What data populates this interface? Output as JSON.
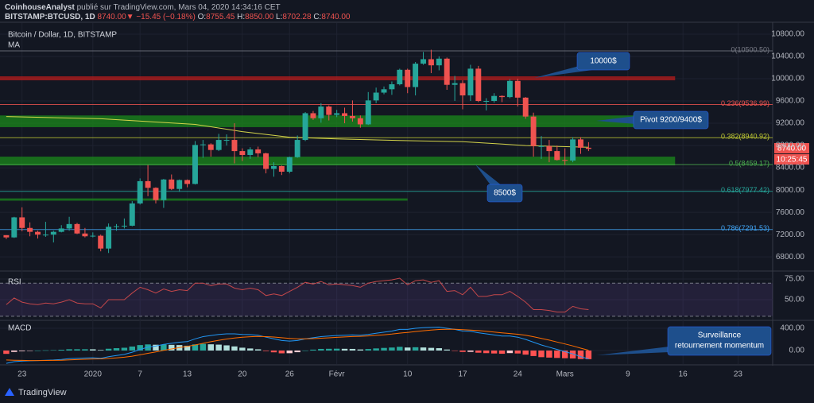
{
  "header": {
    "author": "CoinhouseAnalyst",
    "published": "publié sur TradingView.com, Mars 04, 2020 14:34:16 CET",
    "symbol": "BITSTAMP:BTCUSD, 1D",
    "last": "8740.00",
    "arrow": "▼",
    "change": "−15.45 (−0.18%)",
    "o_label": "O:",
    "o": "8755.45",
    "h_label": "H:",
    "h": "8850.00",
    "l_label": "L:",
    "l": "8702.28",
    "c_label": "C:",
    "c": "8740.00"
  },
  "footer": "TradingView",
  "chart_data": [
    {
      "type": "candlestick",
      "title": "Bitcoin / Dollar, 1D, BITSTAMP",
      "up_color": "#26a69a",
      "down_color": "#ef5350",
      "ohlc": [
        [
          7190,
          7190,
          7120,
          7150
        ],
        [
          7150,
          7520,
          7140,
          7510
        ],
        [
          7510,
          7690,
          7260,
          7320
        ],
        [
          7320,
          7420,
          7170,
          7250
        ],
        [
          7250,
          7270,
          7130,
          7200
        ],
        [
          7200,
          7430,
          7160,
          7200
        ],
        [
          7200,
          7270,
          7060,
          7250
        ],
        [
          7250,
          7370,
          7240,
          7310
        ],
        [
          7310,
          7520,
          7270,
          7390
        ],
        [
          7390,
          7410,
          7210,
          7220
        ],
        [
          7220,
          7320,
          7150,
          7170
        ],
        [
          7170,
          7240,
          7150,
          7180
        ],
        [
          7180,
          7200,
          6900,
          6950
        ],
        [
          6950,
          7400,
          6870,
          7340
        ],
        [
          7340,
          7390,
          7270,
          7350
        ],
        [
          7350,
          7490,
          7310,
          7360
        ],
        [
          7360,
          7800,
          7350,
          7760
        ],
        [
          7760,
          8210,
          7740,
          8160
        ],
        [
          8160,
          8450,
          7890,
          8040
        ],
        [
          8040,
          8050,
          7760,
          7820
        ],
        [
          7820,
          8200,
          7680,
          8190
        ],
        [
          8190,
          8280,
          8000,
          8020
        ],
        [
          8020,
          8190,
          7970,
          8180
        ],
        [
          8180,
          8190,
          8050,
          8110
        ],
        [
          8110,
          8880,
          8100,
          8810
        ],
        [
          8810,
          8900,
          8580,
          8820
        ],
        [
          8820,
          8840,
          8600,
          8720
        ],
        [
          8720,
          9010,
          8700,
          8900
        ],
        [
          8900,
          9000,
          8800,
          8900
        ],
        [
          8900,
          9200,
          8480,
          8700
        ],
        [
          8700,
          8750,
          8520,
          8630
        ],
        [
          8630,
          8770,
          8560,
          8730
        ],
        [
          8730,
          8780,
          8590,
          8660
        ],
        [
          8660,
          8670,
          8300,
          8380
        ],
        [
          8380,
          8500,
          8240,
          8430
        ],
        [
          8430,
          8440,
          8270,
          8330
        ],
        [
          8330,
          8600,
          8300,
          8590
        ],
        [
          8590,
          8980,
          8580,
          8900
        ],
        [
          8900,
          9400,
          8880,
          9380
        ],
        [
          9380,
          9420,
          9260,
          9290
        ],
        [
          9290,
          9560,
          9210,
          9500
        ],
        [
          9500,
          9520,
          9250,
          9350
        ],
        [
          9350,
          9440,
          9310,
          9380
        ],
        [
          9380,
          9480,
          9200,
          9330
        ],
        [
          9330,
          9610,
          9230,
          9290
        ],
        [
          9290,
          9340,
          9120,
          9180
        ],
        [
          9180,
          9760,
          9170,
          9610
        ],
        [
          9610,
          9840,
          9560,
          9750
        ],
        [
          9750,
          9860,
          9720,
          9810
        ],
        [
          9810,
          9950,
          9710,
          9900
        ],
        [
          9900,
          10180,
          9880,
          10160
        ],
        [
          10160,
          10180,
          9740,
          9850
        ],
        [
          9850,
          10300,
          9700,
          10270
        ],
        [
          10270,
          10480,
          10250,
          10350
        ],
        [
          10350,
          10520,
          10100,
          10240
        ],
        [
          10240,
          10400,
          10150,
          10360
        ],
        [
          10360,
          10380,
          9800,
          9890
        ],
        [
          9890,
          10050,
          9600,
          9920
        ],
        [
          9920,
          9970,
          9450,
          9700
        ],
        [
          9700,
          10250,
          9600,
          10180
        ],
        [
          10180,
          10230,
          9580,
          9600
        ],
        [
          9600,
          9650,
          9430,
          9600
        ],
        [
          9600,
          9740,
          9570,
          9690
        ],
        [
          9690,
          9700,
          9580,
          9670
        ],
        [
          9670,
          9990,
          9650,
          9960
        ],
        [
          9960,
          10000,
          9500,
          9660
        ],
        [
          9660,
          9670,
          9280,
          9320
        ],
        [
          9320,
          9390,
          8600,
          8790
        ],
        [
          8790,
          8970,
          8560,
          8790
        ],
        [
          8790,
          8900,
          8500,
          8700
        ],
        [
          8700,
          8800,
          8530,
          8540
        ],
        [
          8540,
          8750,
          8450,
          8530
        ],
        [
          8530,
          8950,
          8500,
          8910
        ],
        [
          8910,
          8950,
          8650,
          8760
        ],
        [
          8760,
          8860,
          8700,
          8740
        ]
      ],
      "series": [
        {
          "name": "MA",
          "color": "#d4d44a",
          "x": [
            0,
            12,
            24,
            30,
            36,
            42,
            50,
            58,
            66,
            74
          ],
          "values": [
            9320,
            9280,
            9180,
            9050,
            8950,
            8920,
            8890,
            8870,
            8800,
            8770
          ]
        }
      ],
      "xlim": [
        -0.8,
        97.4
      ],
      "xticks": [
        {
          "value": 2,
          "label": "23"
        },
        {
          "value": 11,
          "label": "2020"
        },
        {
          "value": 17,
          "label": "7"
        },
        {
          "value": 23,
          "label": "13"
        },
        {
          "value": 30,
          "label": "20"
        },
        {
          "value": 36,
          "label": "26"
        },
        {
          "value": 42,
          "label": "Févr"
        },
        {
          "value": 51,
          "label": "10"
        },
        {
          "value": 58,
          "label": "17"
        },
        {
          "value": 65,
          "label": "24"
        },
        {
          "value": 71,
          "label": "Mars"
        },
        {
          "value": 79,
          "label": "9"
        },
        {
          "value": 86,
          "label": "16"
        },
        {
          "value": 93,
          "label": "23"
        }
      ],
      "ylim": [
        6560,
        10985
      ],
      "yticks": [
        {
          "value": 6800,
          "label": "6800.00"
        },
        {
          "value": 7200,
          "label": "7200.00"
        },
        {
          "value": 7600,
          "label": "7600.00"
        },
        {
          "value": 8000,
          "label": "8000.00"
        },
        {
          "value": 8400,
          "label": "8400.00"
        },
        {
          "value": 8800,
          "label": "8800.00"
        },
        {
          "value": 9200,
          "label": "9200.00"
        },
        {
          "value": 9600,
          "label": "9600.00"
        },
        {
          "value": 10000,
          "label": "10000.00"
        },
        {
          "value": 10400,
          "label": "10400.00"
        },
        {
          "value": 10800,
          "label": "10800.00"
        }
      ],
      "levels": [
        {
          "value": 10500.5,
          "label": "0(10500.50)",
          "color": "#787b86"
        },
        {
          "value": 9536.99,
          "label": "0.236(9536.99)",
          "color": "#ef5350"
        },
        {
          "value": 8940.92,
          "label": "0.382(8940.92)",
          "color": "#c0ca33"
        },
        {
          "value": 8459.17,
          "label": "0.5(8459.17)",
          "color": "#4caf50"
        },
        {
          "value": 7977.42,
          "label": "0.618(7977.42)",
          "color": "#26a69a"
        },
        {
          "value": 7291.53,
          "label": "0.786(7291.53)",
          "color": "#42a5f5"
        }
      ],
      "zones": [
        {
          "from": 9971,
          "to": 10043,
          "end": 85,
          "color": "#b71c1c"
        },
        {
          "from": 9130,
          "to": 9340,
          "end": 85,
          "color": "#1b8a1b"
        },
        {
          "from": 8443,
          "to": 8600,
          "end": 85,
          "color": "#1b8a1b"
        },
        {
          "from": 7810,
          "to": 7850,
          "end": 51,
          "color": "#1b8a1b"
        }
      ],
      "annotations": [
        "10000$",
        "Pivot 9200/9400$",
        "8500$"
      ],
      "price_tag": "8740.00",
      "countdown": "10:25:45"
    },
    {
      "type": "line",
      "title": "RSI",
      "color": "#c4474a",
      "values": [
        44,
        52,
        47,
        45,
        44,
        46,
        45,
        47,
        50,
        46,
        45,
        45,
        40,
        50,
        50,
        50,
        58,
        65,
        62,
        58,
        63,
        60,
        62,
        61,
        70,
        70,
        67,
        69,
        69,
        64,
        62,
        64,
        62,
        55,
        57,
        55,
        60,
        65,
        71,
        69,
        72,
        68,
        69,
        68,
        67,
        65,
        70,
        72,
        73,
        74,
        76,
        68,
        73,
        74,
        71,
        73,
        60,
        61,
        56,
        65,
        54,
        54,
        56,
        56,
        60,
        54,
        47,
        38,
        38,
        37,
        35,
        35,
        42,
        39,
        38
      ],
      "levels": [
        30,
        70
      ],
      "ylim": [
        26,
        82.7
      ],
      "yticks": [
        {
          "value": 50,
          "label": "50.00"
        },
        {
          "value": 75,
          "label": "75.00"
        }
      ]
    },
    {
      "type": "macd",
      "title": "MACD",
      "series": [
        {
          "color": "#2196f3",
          "values": [
            -230,
            -200,
            -190,
            -185,
            -180,
            -175,
            -170,
            -160,
            -145,
            -140,
            -135,
            -130,
            -140,
            -110,
            -90,
            -70,
            -30,
            20,
            60,
            80,
            110,
            130,
            150,
            160,
            210,
            250,
            270,
            290,
            300,
            300,
            290,
            285,
            275,
            240,
            210,
            180,
            170,
            180,
            210,
            230,
            250,
            260,
            270,
            275,
            280,
            275,
            290,
            310,
            330,
            350,
            380,
            380,
            400,
            410,
            415,
            420,
            400,
            380,
            350,
            345,
            320,
            300,
            280,
            260,
            260,
            240,
            200,
            150,
            100,
            60,
            20,
            -20,
            -60,
            -110,
            -150
          ]
        },
        {
          "color": "#ff6d00",
          "values": [
            -170,
            -175,
            -178,
            -180,
            -180,
            -179,
            -177,
            -174,
            -168,
            -163,
            -158,
            -152,
            -150,
            -142,
            -132,
            -120,
            -102,
            -78,
            -50,
            -24,
            3,
            28,
            52,
            74,
            100,
            130,
            158,
            184,
            207,
            226,
            239,
            248,
            253,
            250,
            242,
            230,
            218,
            210,
            210,
            214,
            221,
            229,
            237,
            244,
            251,
            256,
            263,
            272,
            283,
            296,
            313,
            326,
            341,
            355,
            367,
            378,
            382,
            382,
            375,
            369,
            359,
            347,
            333,
            318,
            306,
            293,
            274,
            249,
            219,
            187,
            153,
            118,
            82,
            43,
            5
          ]
        }
      ],
      "histogram": [
        -60,
        -25,
        -12,
        -5,
        0,
        4,
        7,
        14,
        23,
        23,
        23,
        22,
        10,
        32,
        42,
        50,
        72,
        98,
        110,
        104,
        107,
        102,
        98,
        86,
        110,
        120,
        112,
        106,
        93,
        74,
        51,
        37,
        22,
        -10,
        -32,
        -50,
        -48,
        -30,
        0,
        16,
        29,
        31,
        33,
        31,
        29,
        19,
        27,
        38,
        47,
        54,
        67,
        54,
        59,
        55,
        48,
        42,
        18,
        -2,
        -25,
        -24,
        -39,
        -47,
        -53,
        -58,
        -46,
        -53,
        -74,
        -99,
        -119,
        -127,
        -133,
        -138,
        -142,
        -153,
        -155
      ],
      "histogram_colors": [
        "#26a69a",
        "#b2dfdb",
        "#ff5252",
        "#ffcdd2"
      ],
      "ylim": [
        -243,
        514
      ],
      "yticks": [
        {
          "value": 0,
          "label": "0.00"
        },
        {
          "value": 400,
          "label": "400.00"
        }
      ],
      "annotations": [
        "Surveillance",
        "retournement momentum"
      ]
    }
  ]
}
